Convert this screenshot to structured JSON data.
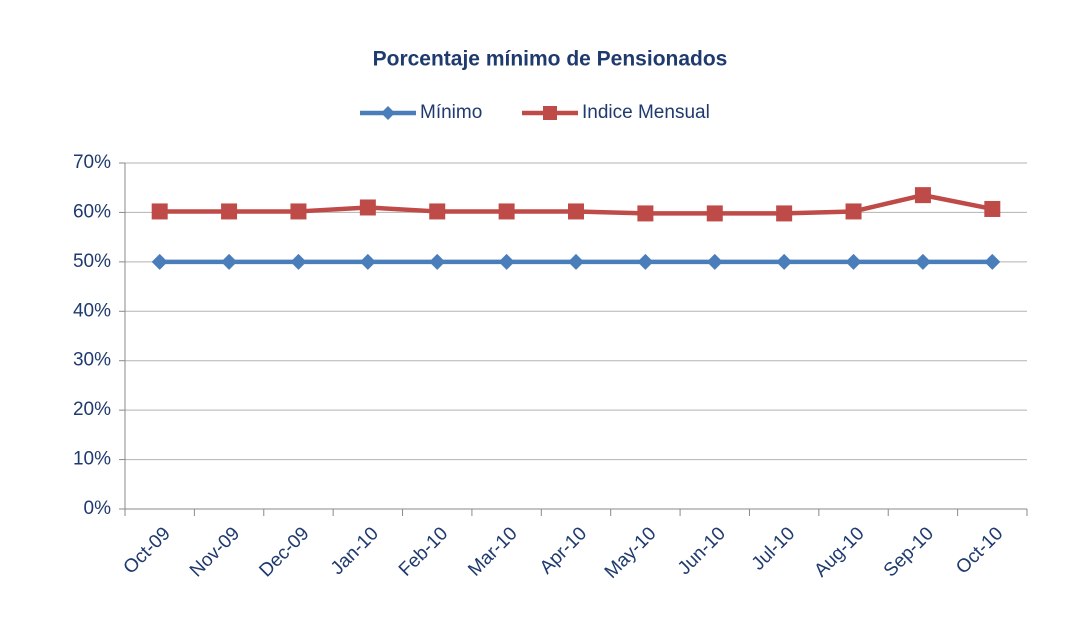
{
  "chart_data": {
    "type": "line",
    "title": "Porcentaje mínimo de Pensionados",
    "categories": [
      "Oct-09",
      "Nov-09",
      "Dec-09",
      "Jan-10",
      "Feb-10",
      "Mar-10",
      "Apr-10",
      "May-10",
      "Jun-10",
      "Jul-10",
      "Aug-10",
      "Sep-10",
      "Oct-10"
    ],
    "series": [
      {
        "name": "Mínimo",
        "color": "#4a7ebb",
        "marker": "diamond",
        "values": [
          50,
          50,
          50,
          50,
          50,
          50,
          50,
          50,
          50,
          50,
          50,
          50,
          50
        ]
      },
      {
        "name": "Indice Mensual",
        "color": "#be4b48",
        "marker": "square",
        "values": [
          60.2,
          60.2,
          60.2,
          61,
          60.2,
          60.2,
          60.2,
          59.8,
          59.8,
          59.8,
          60.2,
          63.5,
          60.7
        ]
      }
    ],
    "ylim": [
      0,
      70
    ],
    "yticks": [
      {
        "value": 0,
        "label": "0%"
      },
      {
        "value": 10,
        "label": "10%"
      },
      {
        "value": 20,
        "label": "20%"
      },
      {
        "value": 30,
        "label": "30%"
      },
      {
        "value": 40,
        "label": "40%"
      },
      {
        "value": 50,
        "label": "50%"
      },
      {
        "value": 60,
        "label": "60%"
      },
      {
        "value": 70,
        "label": "70%"
      }
    ],
    "grid": true,
    "legend": "top"
  }
}
